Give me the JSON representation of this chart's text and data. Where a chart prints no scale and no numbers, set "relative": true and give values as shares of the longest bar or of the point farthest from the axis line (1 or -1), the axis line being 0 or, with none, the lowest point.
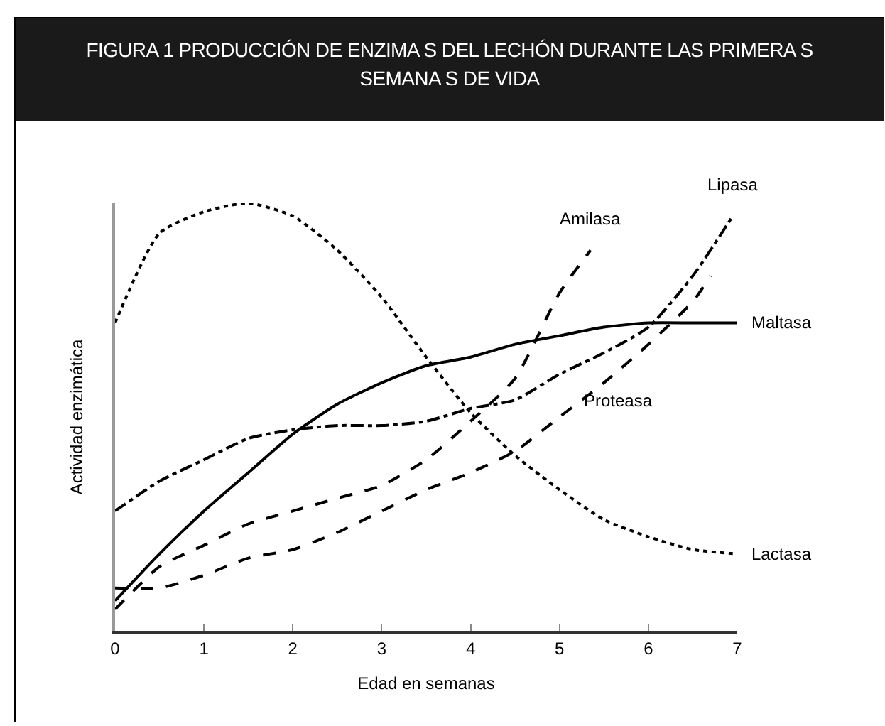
{
  "chart_data": {
    "type": "line",
    "title": "FIGURA 1 PRODUCCIÓN DE ENZIMA S DEL LECHÓN DURANTE LAS PRIMERA S SEMANA S DE VIDA",
    "xlabel": "Edad en semanas",
    "ylabel": "Actividad enzimática",
    "relative": true,
    "xlim": [
      0,
      7
    ],
    "xticks": [
      0,
      1,
      2,
      3,
      4,
      5,
      6,
      7
    ],
    "grid": false,
    "legend": false,
    "marker": "none",
    "series": [
      {
        "name": "Lactasa",
        "color": "#000000",
        "line_style": "dotted",
        "x": [
          0,
          0.5,
          1,
          1.5,
          2,
          2.5,
          3,
          3.5,
          4,
          4.5,
          5,
          5.5,
          6,
          6.5,
          7
        ],
        "values": [
          0.72,
          0.93,
          0.98,
          1.0,
          0.97,
          0.89,
          0.78,
          0.64,
          0.51,
          0.41,
          0.33,
          0.26,
          0.22,
          0.19,
          0.18
        ]
      },
      {
        "name": "Maltasa",
        "color": "#000000",
        "line_style": "solid",
        "x": [
          0,
          0.5,
          1,
          1.5,
          2,
          2.5,
          3,
          3.5,
          4,
          4.5,
          5,
          5.5,
          6,
          6.5,
          7
        ],
        "values": [
          0.07,
          0.18,
          0.28,
          0.37,
          0.46,
          0.53,
          0.58,
          0.62,
          0.64,
          0.67,
          0.69,
          0.71,
          0.72,
          0.72,
          0.72
        ]
      },
      {
        "name": "Lipasa",
        "color": "#000000",
        "line_style": "dashdot",
        "x": [
          0,
          0.5,
          1,
          1.5,
          2,
          2.5,
          3,
          3.5,
          4,
          4.5,
          5,
          5.5,
          6,
          6.5,
          6.95
        ],
        "values": [
          0.28,
          0.35,
          0.4,
          0.45,
          0.47,
          0.48,
          0.48,
          0.49,
          0.52,
          0.54,
          0.6,
          0.65,
          0.71,
          0.83,
          0.97
        ]
      },
      {
        "name": "Amilasa",
        "color": "#000000",
        "line_style": "dashed",
        "x": [
          0,
          0.5,
          1,
          1.5,
          2,
          2.5,
          3,
          3.5,
          4,
          4.5,
          5,
          5.35
        ],
        "values": [
          0.05,
          0.15,
          0.2,
          0.25,
          0.28,
          0.31,
          0.34,
          0.4,
          0.49,
          0.59,
          0.79,
          0.89
        ]
      },
      {
        "name": "Proteasa",
        "color": "#000000",
        "line_style": "dashed",
        "x": [
          0,
          0.5,
          1,
          1.5,
          2,
          2.5,
          3,
          3.5,
          4,
          4.5,
          5,
          5.5,
          6,
          6.5,
          6.7
        ],
        "values": [
          0.1,
          0.1,
          0.13,
          0.17,
          0.19,
          0.23,
          0.28,
          0.33,
          0.37,
          0.42,
          0.5,
          0.58,
          0.67,
          0.77,
          0.83
        ]
      }
    ]
  }
}
